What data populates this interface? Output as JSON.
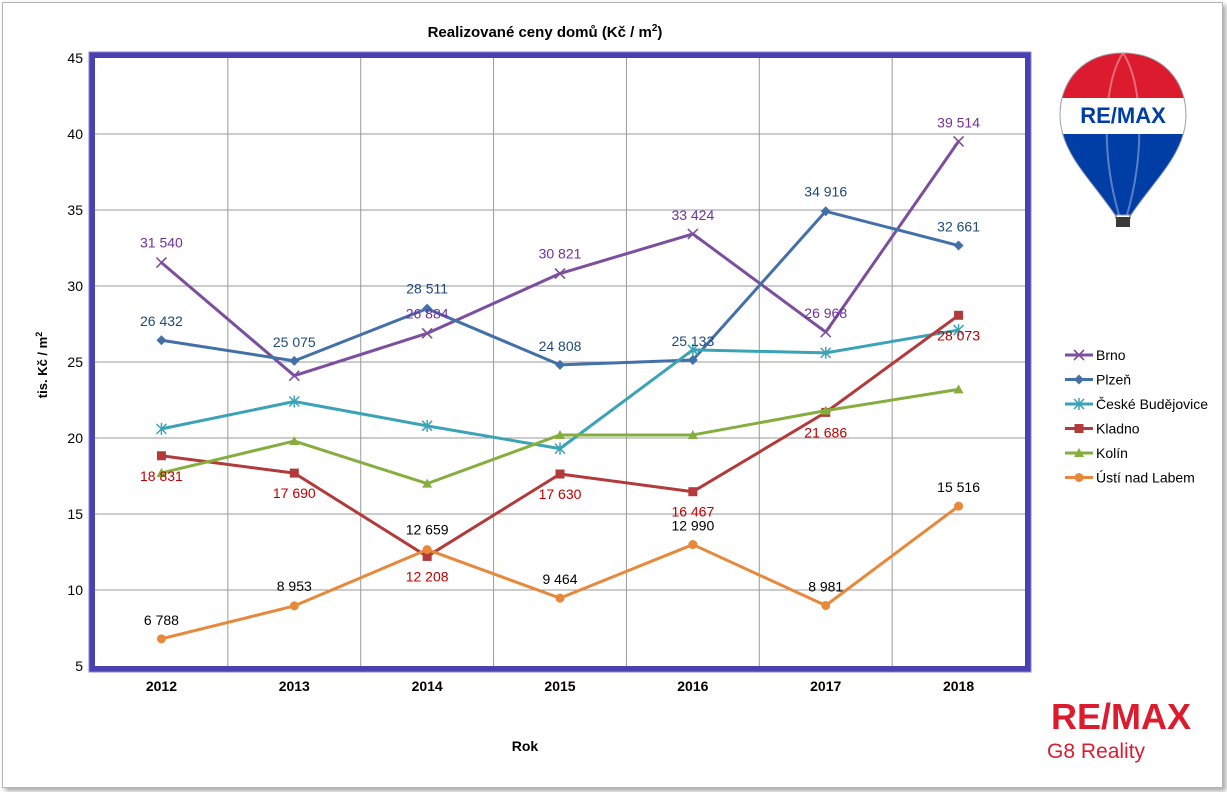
{
  "chart_data": {
    "type": "line",
    "title": "Realizované ceny domů (Kč / m²)",
    "title_main": "Realizované ceny domů (Kč / m",
    "title_sup": "2",
    "title_end": ")",
    "xlabel": "Rok",
    "ylabel": "tis. Kč / m",
    "ylabel_sup": "2",
    "ylim": [
      5,
      45
    ],
    "yticks": [
      "5",
      "10",
      "15",
      "20",
      "25",
      "30",
      "35",
      "40",
      "45"
    ],
    "ytick_values": [
      5,
      10,
      15,
      20,
      25,
      30,
      35,
      40,
      45
    ],
    "categories": [
      "2012",
      "2013",
      "2014",
      "2015",
      "2016",
      "2017",
      "2018"
    ],
    "grid": true,
    "legend_position": "right",
    "series": [
      {
        "name": "Brno",
        "color": "#7b4f9d",
        "label_color": "#7030a0",
        "marker": "x",
        "values": [
          31.54,
          24.1,
          26.884,
          30.821,
          33.424,
          26.968,
          39.514
        ],
        "labels": [
          "31 540",
          "",
          "26 884",
          "30 821",
          "33 424",
          "26 968",
          "39 514"
        ]
      },
      {
        "name": "Plzeň",
        "color": "#4470a8",
        "label_color": "#1f497d",
        "marker": "diamond",
        "values": [
          26.432,
          25.075,
          28.511,
          24.808,
          25.133,
          34.916,
          32.661
        ],
        "labels": [
          "26 432",
          "25 075",
          "28 511",
          "24 808",
          "25 133",
          "34 916",
          "32 661"
        ]
      },
      {
        "name": "České Budějovice",
        "color": "#3ba3b6",
        "label_color": "#31849b",
        "marker": "star",
        "values": [
          20.6,
          22.4,
          20.8,
          19.3,
          25.8,
          25.6,
          27.1
        ],
        "labels": [
          "",
          "",
          "",
          "",
          "",
          "",
          ""
        ]
      },
      {
        "name": "Kladno",
        "color": "#b33a3a",
        "label_color": "#c00000",
        "marker": "square",
        "values": [
          18.831,
          17.69,
          12.208,
          17.63,
          16.467,
          21.686,
          28.073
        ],
        "labels": [
          "18 831",
          "17 690",
          "12 208",
          "17 630",
          "16 467",
          "21 686",
          "28 073"
        ]
      },
      {
        "name": "Kolín",
        "color": "#86ae3f",
        "label_color": "#76923c",
        "marker": "triangle",
        "values": [
          17.7,
          19.8,
          17.0,
          20.2,
          20.2,
          21.8,
          23.2
        ],
        "labels": [
          "",
          "",
          "",
          "",
          "",
          "",
          ""
        ]
      },
      {
        "name": "Ústí nad Labem",
        "color": "#e8883a",
        "label_color": "#000000",
        "marker": "circle",
        "values": [
          6.788,
          8.953,
          12.659,
          9.464,
          12.99,
          8.981,
          15.516
        ],
        "labels": [
          "6 788",
          "8 953",
          "12 659",
          "9 464",
          "12 990",
          "8 981",
          "15 516"
        ]
      }
    ]
  },
  "branding": {
    "balloon_logo_text": "RE/MAX",
    "logo_text": "RE/MAX",
    "logo_subtitle": "G8 Reality",
    "logo_red": "#dc1c2e",
    "logo_blue": "#003da5"
  }
}
